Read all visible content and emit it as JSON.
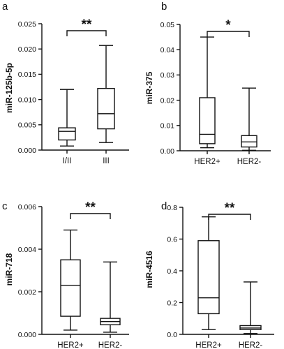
{
  "chart_data": [
    {
      "type": "box",
      "panel_label": "a",
      "ylabel": "miR-125b-5p",
      "ylim": [
        0,
        0.025
      ],
      "yticks": [
        "0.000",
        "0.005",
        "0.010",
        "0.015",
        "0.020",
        "0.025"
      ],
      "categories": [
        "I/II",
        "III"
      ],
      "boxes": [
        {
          "min": 0.0008,
          "q1": 0.002,
          "median": 0.0037,
          "q3": 0.0044,
          "max": 0.012
        },
        {
          "min": 0.0015,
          "q1": 0.0042,
          "median": 0.0072,
          "q3": 0.0122,
          "max": 0.0207
        }
      ],
      "significance": "**"
    },
    {
      "type": "box",
      "panel_label": "b",
      "ylabel": "miR-375",
      "ylim": [
        0,
        0.05
      ],
      "yticks": [
        "0.00",
        "0.01",
        "0.02",
        "0.03",
        "0.04",
        "0.05"
      ],
      "categories": [
        "HER2+",
        "HER2-"
      ],
      "boxes": [
        {
          "min": 0.0012,
          "q1": 0.0028,
          "median": 0.0065,
          "q3": 0.021,
          "max": 0.045
        },
        {
          "min": 0.0002,
          "q1": 0.0015,
          "median": 0.0035,
          "q3": 0.006,
          "max": 0.0248
        }
      ],
      "significance": "*"
    },
    {
      "type": "box",
      "panel_label": "c",
      "ylabel": "miR-718",
      "ylim": [
        0,
        0.006
      ],
      "yticks": [
        "0.000",
        "0.002",
        "0.004",
        "0.006"
      ],
      "categories": [
        "HER2+",
        "HER2-"
      ],
      "boxes": [
        {
          "min": 0.0002,
          "q1": 0.00085,
          "median": 0.0023,
          "q3": 0.0035,
          "max": 0.0049
        },
        {
          "min": 0.0001,
          "q1": 0.00045,
          "median": 0.0006,
          "q3": 0.00075,
          "max": 0.0034
        }
      ],
      "significance": "**"
    },
    {
      "type": "box",
      "panel_label": "d",
      "ylabel": "miR-4516",
      "ylim": [
        0,
        0.8
      ],
      "yticks": [
        "0.0",
        "0.2",
        "0.4",
        "0.6",
        "0.8"
      ],
      "categories": [
        "HER2+",
        "HER2-"
      ],
      "boxes": [
        {
          "min": 0.03,
          "q1": 0.13,
          "median": 0.23,
          "q3": 0.59,
          "max": 0.74
        },
        {
          "min": 0.005,
          "q1": 0.03,
          "median": 0.04,
          "q3": 0.055,
          "max": 0.33
        }
      ],
      "significance": "**"
    }
  ]
}
